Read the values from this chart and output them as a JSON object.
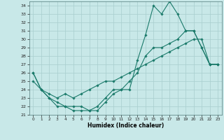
{
  "title": "",
  "xlabel": "Humidex (Indice chaleur)",
  "ylabel": "",
  "background_color": "#c8e8e8",
  "grid_color": "#a8cece",
  "line_color": "#1a7a6a",
  "xlim": [
    -0.5,
    23.5
  ],
  "ylim": [
    21,
    34.5
  ],
  "yticks": [
    21,
    22,
    23,
    24,
    25,
    26,
    27,
    28,
    29,
    30,
    31,
    32,
    33,
    34
  ],
  "xticks": [
    0,
    1,
    2,
    3,
    4,
    5,
    6,
    7,
    8,
    9,
    10,
    11,
    12,
    13,
    14,
    15,
    16,
    17,
    18,
    19,
    20,
    21,
    22,
    23
  ],
  "line1_x": [
    0,
    1,
    2,
    3,
    4,
    5,
    6,
    7,
    8,
    9,
    10,
    11,
    12,
    13,
    14,
    15,
    16,
    17,
    18,
    19,
    20,
    21,
    22,
    23
  ],
  "line1_y": [
    26,
    24,
    23,
    22,
    22,
    21.5,
    21.5,
    21.5,
    22,
    23,
    24,
    24,
    24,
    27.5,
    30.5,
    34,
    33,
    34.5,
    33,
    31,
    31,
    29,
    27,
    27
  ],
  "line2_x": [
    0,
    1,
    2,
    3,
    4,
    5,
    6,
    7,
    8,
    9,
    10,
    11,
    12,
    13,
    14,
    15,
    16,
    17,
    18,
    19,
    20,
    21,
    22,
    23
  ],
  "line2_y": [
    26,
    24,
    23,
    22.5,
    22,
    22,
    22,
    21.5,
    21.5,
    22.5,
    23.5,
    24,
    25,
    26,
    28,
    29,
    29,
    29.5,
    30,
    31,
    31,
    29,
    27,
    27
  ],
  "line3_x": [
    0,
    1,
    2,
    3,
    4,
    5,
    6,
    7,
    8,
    9,
    10,
    11,
    12,
    13,
    14,
    15,
    16,
    17,
    18,
    19,
    20,
    21,
    22,
    23
  ],
  "line3_y": [
    25,
    24,
    23.5,
    23,
    23.5,
    23,
    23.5,
    24,
    24.5,
    25,
    25,
    25.5,
    26,
    26.5,
    27,
    27.5,
    28,
    28.5,
    29,
    29.5,
    30,
    30,
    27,
    27
  ]
}
